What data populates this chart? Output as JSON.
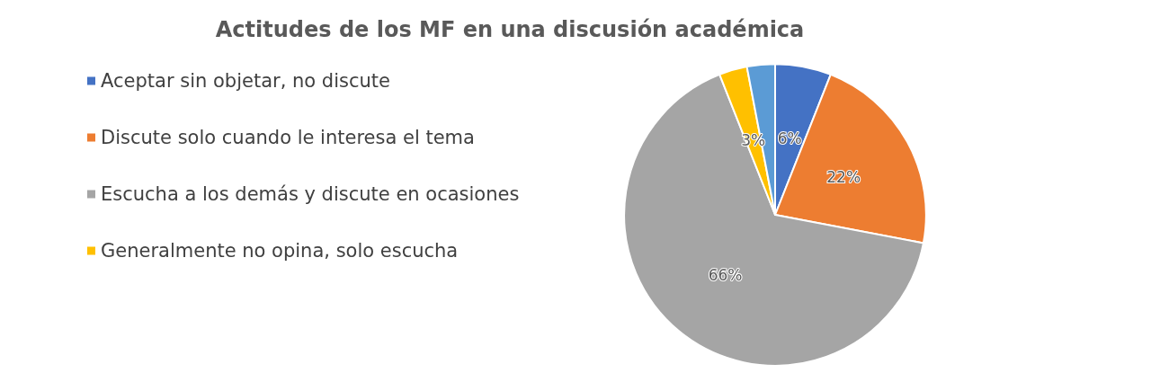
{
  "chart_data": {
    "type": "pie",
    "title": "Actitudes de los MF en una discusión académica",
    "categories": [
      "Aceptar sin objetar, no discute",
      "Discute solo cuando le interesa el tema",
      "Escucha a los demás y discute en ocasiones",
      "Generalmente no opina, solo escucha",
      null
    ],
    "values": [
      6,
      22,
      66,
      3,
      3
    ],
    "colors": [
      "#4472c4",
      "#ed7d31",
      "#a5a5a5",
      "#ffc000",
      "#5b9bd5"
    ],
    "value_labels": [
      "6%",
      "22%",
      "66%",
      "3%",
      null
    ],
    "legend": "left"
  }
}
